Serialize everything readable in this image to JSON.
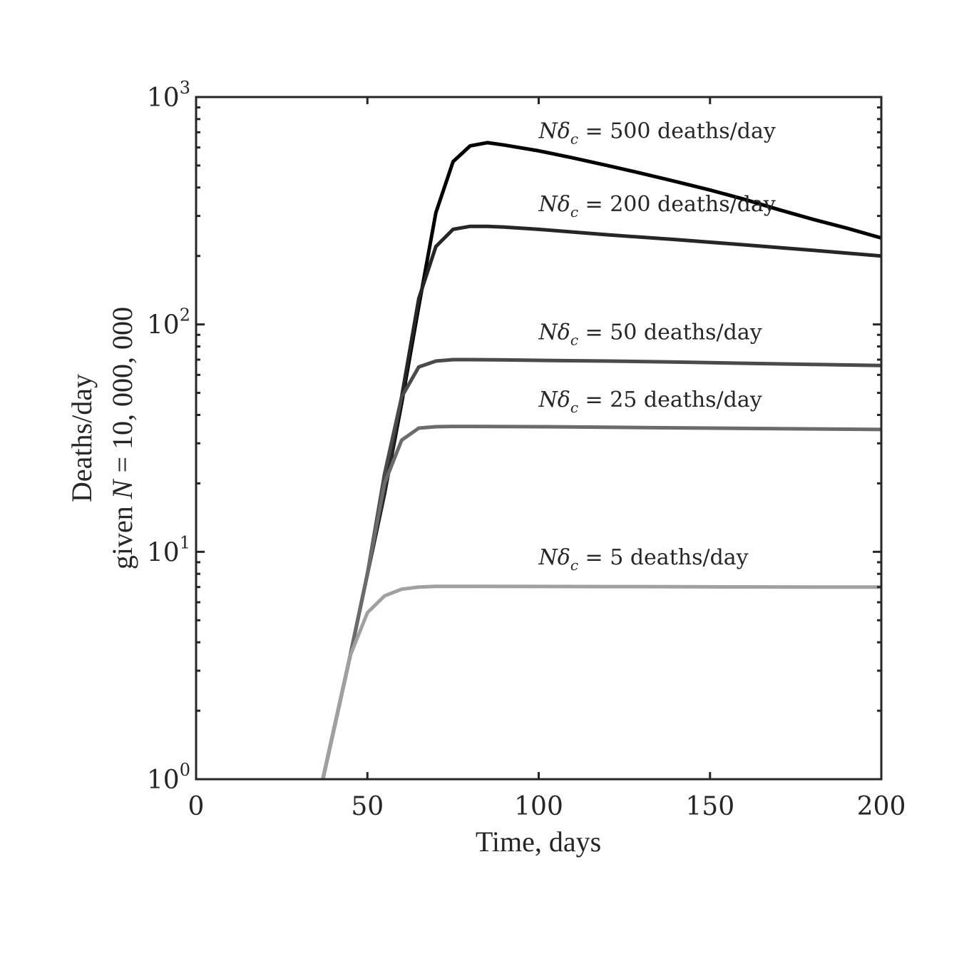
{
  "chart_data": {
    "type": "line",
    "title": "",
    "xlabel": "Time, days",
    "ylabel_lines": [
      "Deaths/day",
      "given N = 10, 000, 000"
    ],
    "ylabel_parts": {
      "line1": "Deaths/day",
      "line2_prefix": "given ",
      "line2_var": "N",
      "line2_suffix": " = 10, 000, 000"
    },
    "xlim": [
      0,
      200
    ],
    "ylim": [
      1,
      1000
    ],
    "yscale": "log",
    "grid": false,
    "x_ticks": [
      0,
      50,
      100,
      150,
      200
    ],
    "x_tick_labels": [
      "0",
      "50",
      "100",
      "150",
      "200"
    ],
    "y_ticks": [
      1,
      10,
      100,
      1000
    ],
    "y_tick_labels": [
      {
        "base": "10",
        "exp": "0"
      },
      {
        "base": "10",
        "exp": "1"
      },
      {
        "base": "10",
        "exp": "2"
      },
      {
        "base": "10",
        "exp": "3"
      }
    ],
    "series": [
      {
        "color": "#000000",
        "x": [
          37,
          40,
          45,
          50,
          55,
          60,
          65,
          70,
          75,
          80,
          85,
          90,
          100,
          110,
          120,
          130,
          140,
          150,
          160,
          170,
          180,
          190,
          200
        ],
        "y": [
          1,
          1.6,
          3.5,
          8,
          18,
          45,
          120,
          310,
          520,
          610,
          630,
          615,
          580,
          540,
          500,
          462,
          425,
          390,
          355,
          320,
          290,
          265,
          240
        ],
        "annotation": {
          "var": "N",
          "greek": "δ",
          "sub": "c",
          "text": " = 500 deaths/day",
          "x": 100,
          "y": 660
        }
      },
      {
        "color": "#262626",
        "x": [
          37,
          40,
          45,
          50,
          55,
          60,
          65,
          70,
          75,
          80,
          85,
          90,
          100,
          120,
          140,
          160,
          180,
          200
        ],
        "y": [
          1,
          1.6,
          3.5,
          8,
          18,
          48,
          130,
          220,
          262,
          270,
          270,
          268,
          262,
          248,
          236,
          224,
          212,
          200
        ],
        "annotation": {
          "var": "N",
          "greek": "δ",
          "sub": "c",
          "text": " = 200 deaths/day",
          "x": 100,
          "y": 315
        }
      },
      {
        "color": "#4a4a4a",
        "x": [
          37,
          40,
          45,
          50,
          55,
          60,
          65,
          70,
          75,
          80,
          90,
          100,
          120,
          140,
          160,
          180,
          200
        ],
        "y": [
          1,
          1.6,
          3.5,
          8,
          22,
          48,
          65,
          69,
          70,
          70,
          69.8,
          69.5,
          69,
          68.3,
          67.5,
          66.7,
          66
        ],
        "annotation": {
          "var": "N",
          "greek": "δ",
          "sub": "c",
          "text": " = 50 deaths/day",
          "x": 100,
          "y": 86
        }
      },
      {
        "color": "#6b6b6b",
        "x": [
          37,
          40,
          45,
          50,
          55,
          60,
          65,
          70,
          75,
          80,
          100,
          120,
          140,
          160,
          180,
          200
        ],
        "y": [
          1,
          1.6,
          3.5,
          8,
          20,
          31,
          35,
          35.5,
          35.6,
          35.6,
          35.5,
          35.3,
          35.1,
          34.9,
          34.7,
          34.5
        ],
        "annotation": {
          "var": "N",
          "greek": "δ",
          "sub": "c",
          "text": " = 25 deaths/day",
          "x": 100,
          "y": 43.5
        }
      },
      {
        "color": "#a0a0a0",
        "x": [
          37,
          40,
          45,
          50,
          55,
          60,
          65,
          70,
          75,
          80,
          100,
          120,
          140,
          160,
          180,
          200
        ],
        "y": [
          1,
          1.6,
          3.5,
          5.4,
          6.4,
          6.85,
          7,
          7.05,
          7.05,
          7.05,
          7.04,
          7.03,
          7.02,
          7.01,
          7.0,
          7.0
        ],
        "annotation": {
          "var": "N",
          "greek": "δ",
          "sub": "c",
          "text": " = 5 deaths/day",
          "x": 100,
          "y": 8.8
        }
      }
    ]
  }
}
